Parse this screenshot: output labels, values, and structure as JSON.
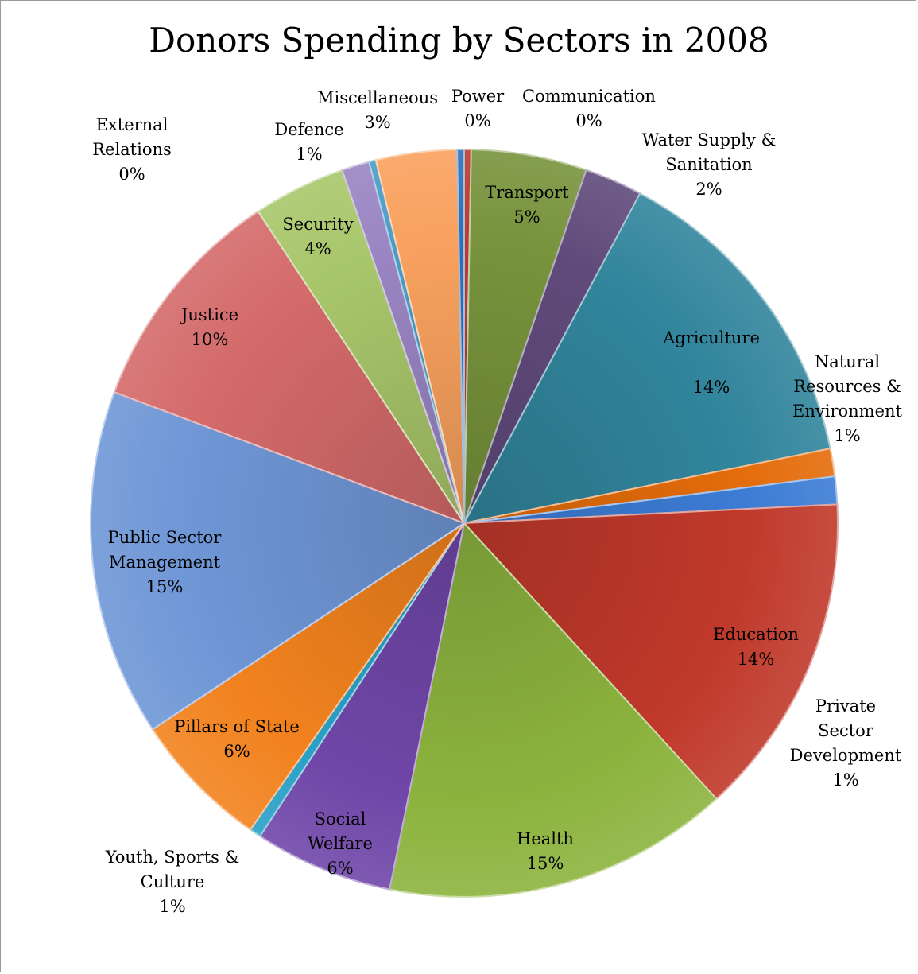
{
  "chart_data": {
    "type": "pie",
    "title": "Donors Spending by Sectors in 2008",
    "start_angle_deg": 0,
    "direction": "clockwise",
    "slices": [
      {
        "name": "Power",
        "value": 0.3,
        "label_pct": "0%",
        "color": "#c0392b",
        "label_lines": [
          "Power",
          "0%"
        ]
      },
      {
        "name": "Transport",
        "value": 5,
        "label_pct": "5%",
        "color": "#77933c",
        "label_lines": [
          "Transport",
          "5%"
        ]
      },
      {
        "name": "Water Supply & Sanitation",
        "value": 2.5,
        "label_pct": "2%",
        "color": "#604a7b",
        "label_lines": [
          "Water Supply &",
          "Sanitation",
          "2%"
        ]
      },
      {
        "name": "Agriculture",
        "value": 14,
        "label_pct": "14%",
        "color": "#31859c",
        "label_lines": [
          "Agriculture",
          "",
          "14%"
        ]
      },
      {
        "name": "Natural Resources & Environment",
        "value": 1.2,
        "label_pct": "1%",
        "color": "#e46c0a",
        "label_lines": [
          "Natural",
          "Resources &",
          "Environment",
          "1%"
        ]
      },
      {
        "name": "Private Sector Development",
        "value": 1.2,
        "label_pct": "1%",
        "color": "#3c7cd4",
        "label_lines": [
          "Private",
          "Sector",
          "Development",
          "1%"
        ]
      },
      {
        "name": "Education",
        "value": 14,
        "label_pct": "14%",
        "color": "#c0392b",
        "label_lines": [
          "Education",
          "14%"
        ]
      },
      {
        "name": "Health",
        "value": 15,
        "label_pct": "15%",
        "color": "#8cb33e",
        "label_lines": [
          "Health",
          "15%"
        ]
      },
      {
        "name": "Social Welfare",
        "value": 6,
        "label_pct": "6%",
        "color": "#7046a8",
        "label_lines": [
          "Social",
          "Welfare",
          "6%"
        ]
      },
      {
        "name": "Youth, Sports & Culture",
        "value": 0.5,
        "label_pct": "1%",
        "color": "#2aa0c8",
        "label_lines": [
          "Youth, Sports &",
          "Culture",
          "1%"
        ]
      },
      {
        "name": "Pillars of State",
        "value": 6,
        "label_pct": "6%",
        "color": "#f2821e",
        "label_lines": [
          "Pillars of State",
          "6%"
        ]
      },
      {
        "name": "Public Sector Management",
        "value": 15,
        "label_pct": "15%",
        "color": "#6f97d6",
        "label_lines": [
          "Public Sector",
          "Management",
          "15%"
        ]
      },
      {
        "name": "Justice",
        "value": 10,
        "label_pct": "10%",
        "color": "#d46a6a",
        "label_lines": [
          "Justice",
          "10%"
        ]
      },
      {
        "name": "Security",
        "value": 4,
        "label_pct": "4%",
        "color": "#a8c66a",
        "label_lines": [
          "Security",
          "4%"
        ]
      },
      {
        "name": "Defence",
        "value": 1.2,
        "label_pct": "1%",
        "color": "#9a85c2",
        "label_lines": [
          "Defence",
          "1%"
        ]
      },
      {
        "name": "External Relations",
        "value": 0.3,
        "label_pct": "0%",
        "color": "#4a9bc8",
        "label_lines": [
          "External",
          "Relations",
          "0%"
        ]
      },
      {
        "name": "Miscellaneous",
        "value": 3.5,
        "label_pct": "3%",
        "color": "#f9a15e",
        "label_lines": [
          "Miscellaneous",
          "3%"
        ]
      },
      {
        "name": "Communication",
        "value": 0.3,
        "label_pct": "0%",
        "color": "#2e6fb8",
        "label_lines": [
          "Communication",
          "0%"
        ]
      }
    ]
  }
}
